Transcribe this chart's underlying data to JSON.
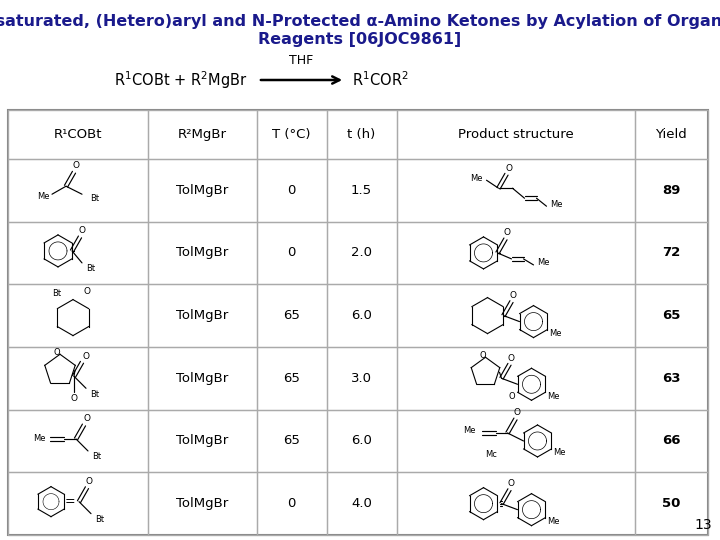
{
  "title_line1": "Alkyl, Unsaturated, (Hetero)aryl and N-Protected α-Amino Ketones by Acylation of Organometallic",
  "title_line2": "Reagents [06JOC9861]",
  "title_color": "#1a1a8c",
  "title_fontsize": 11.5,
  "background_color": "#ffffff",
  "col_headers": [
    "R¹COBt",
    "R²MgBr",
    "T (°C)",
    "t (h)",
    "Product structure",
    "Yield"
  ],
  "row_data_text": [
    [
      "TolMgBr",
      "0",
      "1.5",
      "89"
    ],
    [
      "TolMgBr",
      "0",
      "2.0",
      "72"
    ],
    [
      "TolMgBr",
      "65",
      "6.0",
      "65"
    ],
    [
      "TolMgBr",
      "65",
      "3.0",
      "63"
    ],
    [
      "TolMgBr",
      "65",
      "6.0",
      "66"
    ],
    [
      "TolMgBr",
      "0",
      "4.0",
      "50"
    ]
  ],
  "slide_number": "13",
  "grid_color": "#aaaaaa",
  "text_color": "#000000"
}
